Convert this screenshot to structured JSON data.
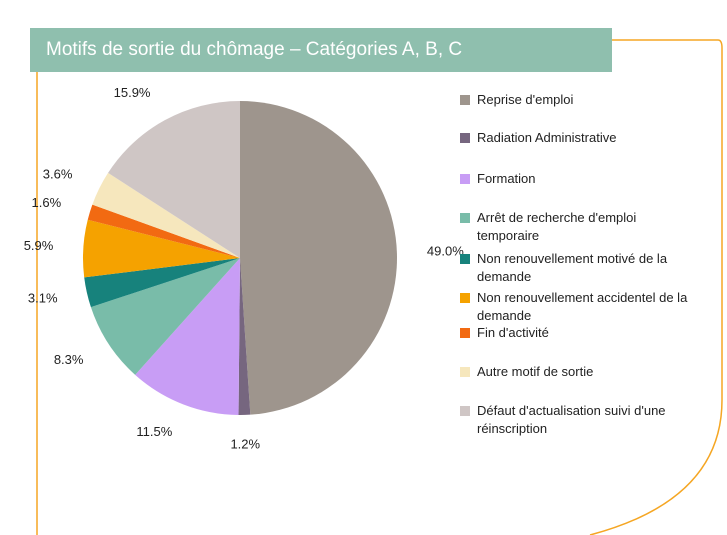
{
  "chart_data": {
    "type": "pie",
    "title": "Motifs de sortie du chômage – Catégories A, B, C",
    "categories": [
      "Reprise d'emploi",
      "Radiation Administrative",
      "Formation",
      "Arrêt de recherche d'emploi temporaire",
      "Non renouvellement motivé de la demande",
      "Non renouvellement accidentel de la demande",
      "Fin d'activité",
      "Autre motif de sortie",
      "Défaut d'actualisation suivi d'une réinscription"
    ],
    "values": [
      49.0,
      1.2,
      11.5,
      8.3,
      3.1,
      5.9,
      1.6,
      3.6,
      15.9
    ],
    "value_labels": [
      "49.0%",
      "1.2%",
      "11.5%",
      "8.3%",
      "3.1%",
      "5.9%",
      "1.6%",
      "3.6%",
      "15.9%"
    ],
    "colors": [
      "#9e958d",
      "#76667f",
      "#c89df5",
      "#79bca9",
      "#17827c",
      "#f5a200",
      "#f26a12",
      "#f6e7bd",
      "#cfc6c5"
    ],
    "legend": "right"
  }
}
